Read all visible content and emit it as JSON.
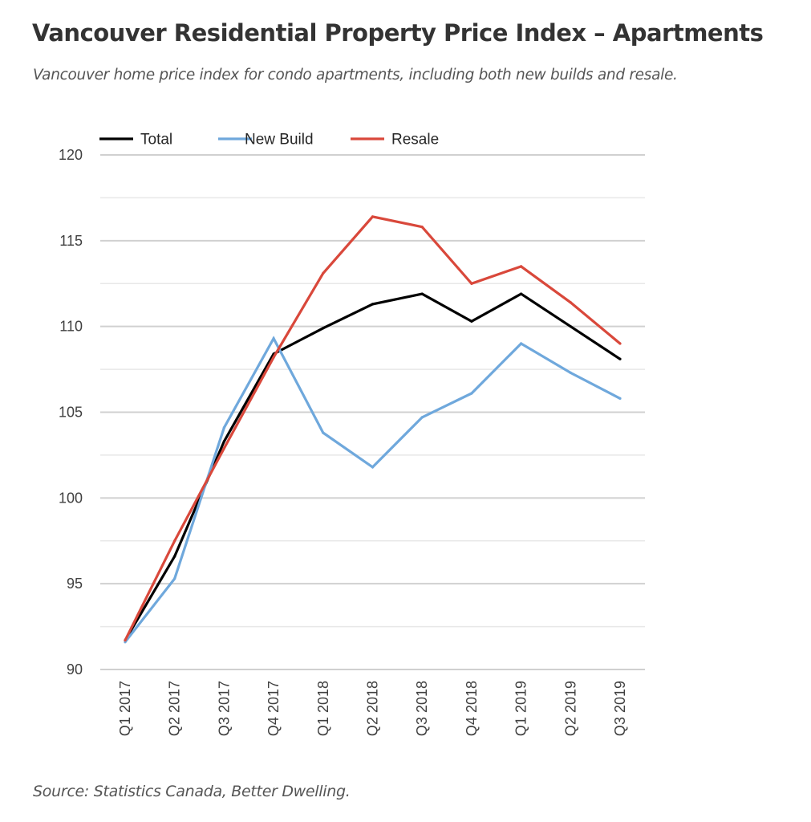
{
  "header": {
    "title": "Vancouver Residential Property Price Index – Apartments",
    "subtitle": "Vancouver home price index for condo apartments, including both new builds and resale."
  },
  "footer": {
    "source": "Source: Statistics Canada, Better Dwelling."
  },
  "chart_data": {
    "type": "line",
    "title": "Vancouver Residential Property Price Index – Apartments",
    "subtitle": "Vancouver home price index for condo apartments, including both new builds and resale.",
    "xlabel": "",
    "ylabel": "",
    "ylim": [
      90,
      120
    ],
    "yticks": [
      90,
      95,
      100,
      105,
      110,
      115,
      120
    ],
    "minor_grid_step": 2.5,
    "grid": true,
    "legend_position": "top-left",
    "categories": [
      "Q1 2017",
      "Q2 2017",
      "Q3 2017",
      "Q4 2017",
      "Q1 2018",
      "Q2 2018",
      "Q3 2018",
      "Q4 2018",
      "Q1 2019",
      "Q2 2019",
      "Q3 2019"
    ],
    "series": [
      {
        "name": "Total",
        "color": "#000000",
        "values": [
          91.7,
          96.6,
          103.3,
          108.4,
          109.9,
          111.3,
          111.9,
          110.3,
          111.9,
          110.0,
          108.1
        ]
      },
      {
        "name": "New Build",
        "color": "#6fa8dc",
        "values": [
          91.6,
          95.3,
          104.1,
          109.3,
          103.8,
          101.8,
          104.7,
          106.1,
          109.0,
          107.3,
          105.8
        ]
      },
      {
        "name": "Resale",
        "color": "#d9483b",
        "values": [
          91.7,
          97.5,
          102.9,
          108.2,
          113.1,
          116.4,
          115.8,
          112.5,
          113.5,
          111.4,
          109.0
        ]
      }
    ],
    "source": "Source: Statistics Canada, Better Dwelling."
  }
}
